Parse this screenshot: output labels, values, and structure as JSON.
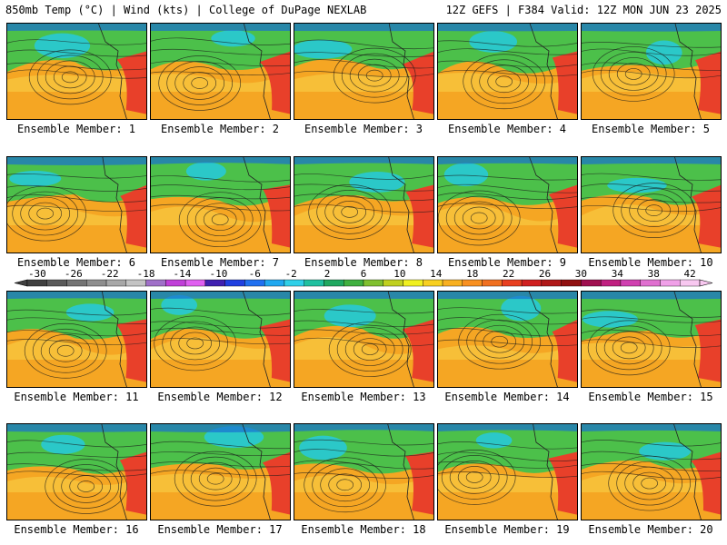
{
  "header": {
    "left": "850mb Temp (°C) | Wind (kts) | College of DuPage NEXLAB",
    "right": "12Z GEFS | F384 Valid: 12Z MON JUN 23 2025"
  },
  "members": [
    {
      "label": "Ensemble Member: 1"
    },
    {
      "label": "Ensemble Member: 2"
    },
    {
      "label": "Ensemble Member: 3"
    },
    {
      "label": "Ensemble Member: 4"
    },
    {
      "label": "Ensemble Member: 5"
    },
    {
      "label": "Ensemble Member: 6"
    },
    {
      "label": "Ensemble Member: 7"
    },
    {
      "label": "Ensemble Member: 8"
    },
    {
      "label": "Ensemble Member: 9"
    },
    {
      "label": "Ensemble Member: 10"
    },
    {
      "label": "Ensemble Member: 11"
    },
    {
      "label": "Ensemble Member: 12"
    },
    {
      "label": "Ensemble Member: 13"
    },
    {
      "label": "Ensemble Member: 14"
    },
    {
      "label": "Ensemble Member: 15"
    },
    {
      "label": "Ensemble Member: 16"
    },
    {
      "label": "Ensemble Member: 17"
    },
    {
      "label": "Ensemble Member: 18"
    },
    {
      "label": "Ensemble Member: 19"
    },
    {
      "label": "Ensemble Member: 20"
    }
  ],
  "colorbar": {
    "ticks": [
      "-30",
      "-26",
      "-22",
      "-18",
      "-14",
      "-10",
      "-6",
      "-2",
      "2",
      "6",
      "10",
      "14",
      "18",
      "22",
      "26",
      "30",
      "34",
      "38",
      "42"
    ],
    "colors": [
      "#404040",
      "#5a5a5a",
      "#747474",
      "#8e8e8e",
      "#a8a8a8",
      "#c4c4c4",
      "#a070c8",
      "#c040d8",
      "#e060f0",
      "#4020b0",
      "#2040e0",
      "#2070f0",
      "#20a8f0",
      "#30d0e8",
      "#20c0a0",
      "#20a860",
      "#40b040",
      "#80c030",
      "#c0d020",
      "#f0f020",
      "#f8d020",
      "#f8b020",
      "#f89020",
      "#f07020",
      "#e84020",
      "#d02020",
      "#b01818",
      "#901010",
      "#a01050",
      "#c02080",
      "#d040b0",
      "#e070d0",
      "#f0a0e8",
      "#f8c8f0"
    ]
  },
  "map_colors": {
    "warm": "#f5a623",
    "hot": "#e8402a",
    "mild": "#f7d34a",
    "cool": "#4cc04a",
    "cold": "#2bc8c8",
    "frigid": "#1a6fd0"
  }
}
